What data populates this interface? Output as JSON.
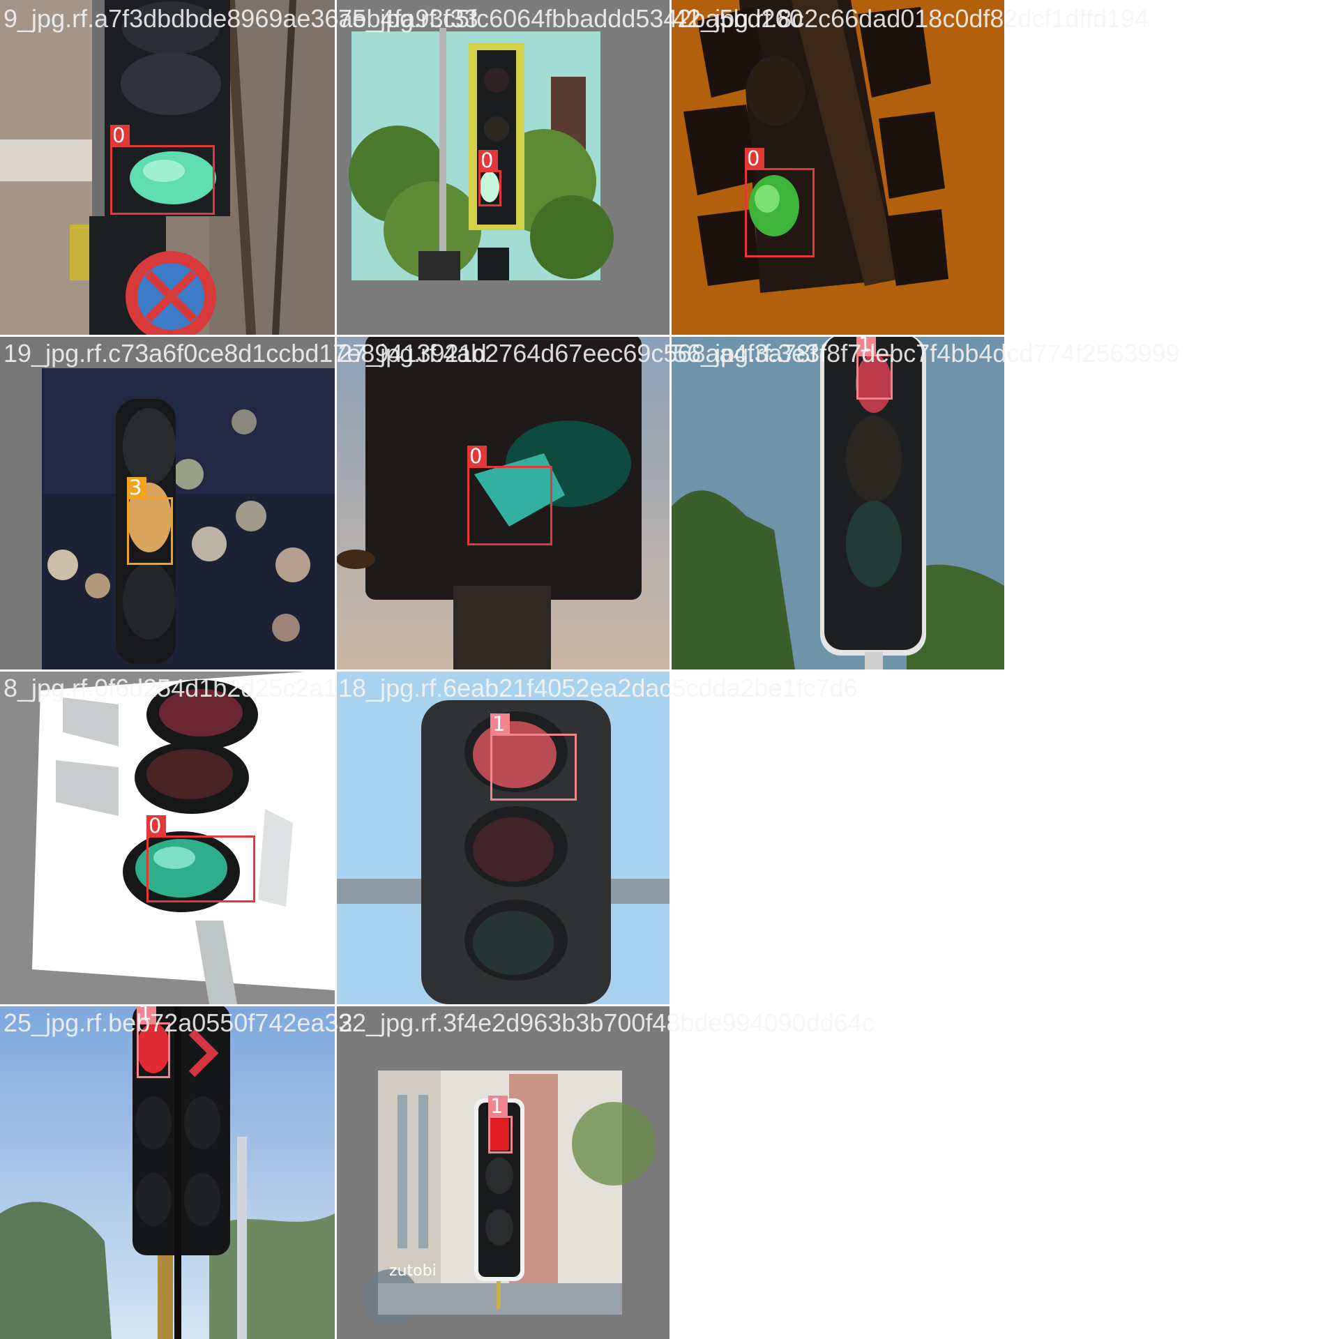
{
  "colors": {
    "class_0": "#e43838",
    "class_1": "#f2848e",
    "class_3": "#f1a51c",
    "filename_text": "#f0f0f0"
  },
  "tiles": [
    {
      "filename": "9_jpg.rf.a7f3dbdbde8969ae36aeb4fa93f33",
      "boxes": [
        {
          "label": "0",
          "cls": "class_0"
        }
      ]
    },
    {
      "filename": "75_jpg.rf.c5fc6064fbbaddd5342ba5bd260",
      "boxes": [
        {
          "label": "0",
          "cls": "class_0"
        }
      ]
    },
    {
      "filename": "42_jpg.rf.8c2c66dad018c0df82dcf1dffd194",
      "boxes": [
        {
          "label": "0",
          "cls": "class_0"
        }
      ]
    },
    {
      "filename": "19_jpg.rf.c73a6f0ce8d1ccbd17e89413921d",
      "boxes": [
        {
          "label": "3",
          "cls": "class_3"
        }
      ]
    },
    {
      "filename": "27_jpg.rf.4ab2764d67eec69c568aa4f3a78f",
      "boxes": [
        {
          "label": "0",
          "cls": "class_0"
        }
      ]
    },
    {
      "filename": "56_jpg.rf.3e3f8f7debc7f4bb4dcd774f2563999",
      "boxes": [
        {
          "label": "1",
          "cls": "class_1"
        }
      ]
    },
    {
      "filename": "8_jpg.rf.0f6d254d1b2d25c2a1",
      "boxes": [
        {
          "label": "0",
          "cls": "class_0"
        }
      ]
    },
    {
      "filename": "18_jpg.rf.6eab21f4052ea2dac5cdda2be1fc7d6",
      "boxes": [
        {
          "label": "1",
          "cls": "class_1"
        }
      ]
    },
    {
      "filename": "25_jpg.rf.beb72a0550f742ea32",
      "boxes": [
        {
          "label": "1",
          "cls": "class_1"
        }
      ]
    },
    {
      "filename": "32_jpg.rf.3f4e2d963b3b700f48bde994090dd64c",
      "boxes": [
        {
          "label": "1",
          "cls": "class_1"
        }
      ]
    }
  ],
  "watermark": "zutobi"
}
